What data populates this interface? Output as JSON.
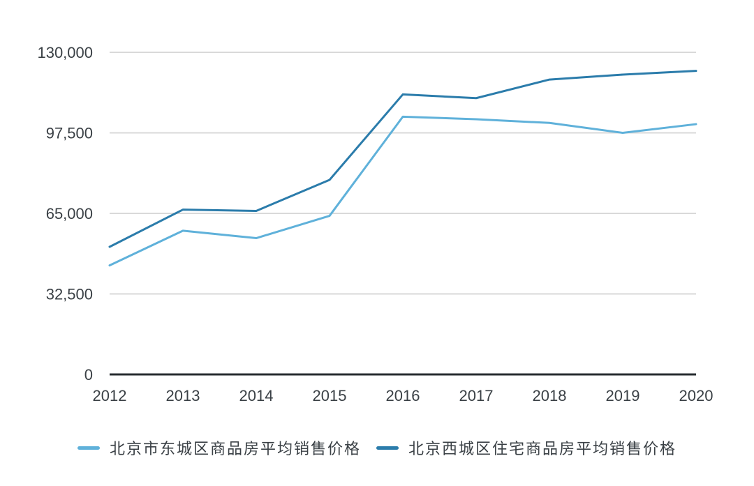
{
  "chart_data": {
    "type": "line",
    "title": "",
    "xlabel": "",
    "ylabel": "",
    "x": [
      "2012",
      "2013",
      "2014",
      "2015",
      "2016",
      "2017",
      "2018",
      "2019",
      "2020"
    ],
    "series": [
      {
        "name": "北京市东城区商品房平均销售价格",
        "color": "#5fb1da",
        "values": [
          44000,
          58000,
          55000,
          64000,
          104000,
          103000,
          101500,
          97500,
          101000
        ]
      },
      {
        "name": "北京西城区住宅商品房平均销售价格",
        "color": "#2b7cab",
        "values": [
          51500,
          66500,
          66000,
          78500,
          113000,
          111500,
          119000,
          121000,
          122500
        ]
      }
    ],
    "ylim": [
      0,
      130000
    ],
    "yticks": [
      0,
      32500,
      65000,
      97500,
      130000
    ],
    "ytick_labels": [
      "0",
      "32,500",
      "65,000",
      "97,500",
      "130,000"
    ],
    "grid": "horizontal",
    "legend_position": "bottom",
    "colors": {
      "gridline": "#d9d9d9",
      "axis": "#272c30",
      "text": "#3a4045",
      "background": "#ffffff"
    }
  }
}
